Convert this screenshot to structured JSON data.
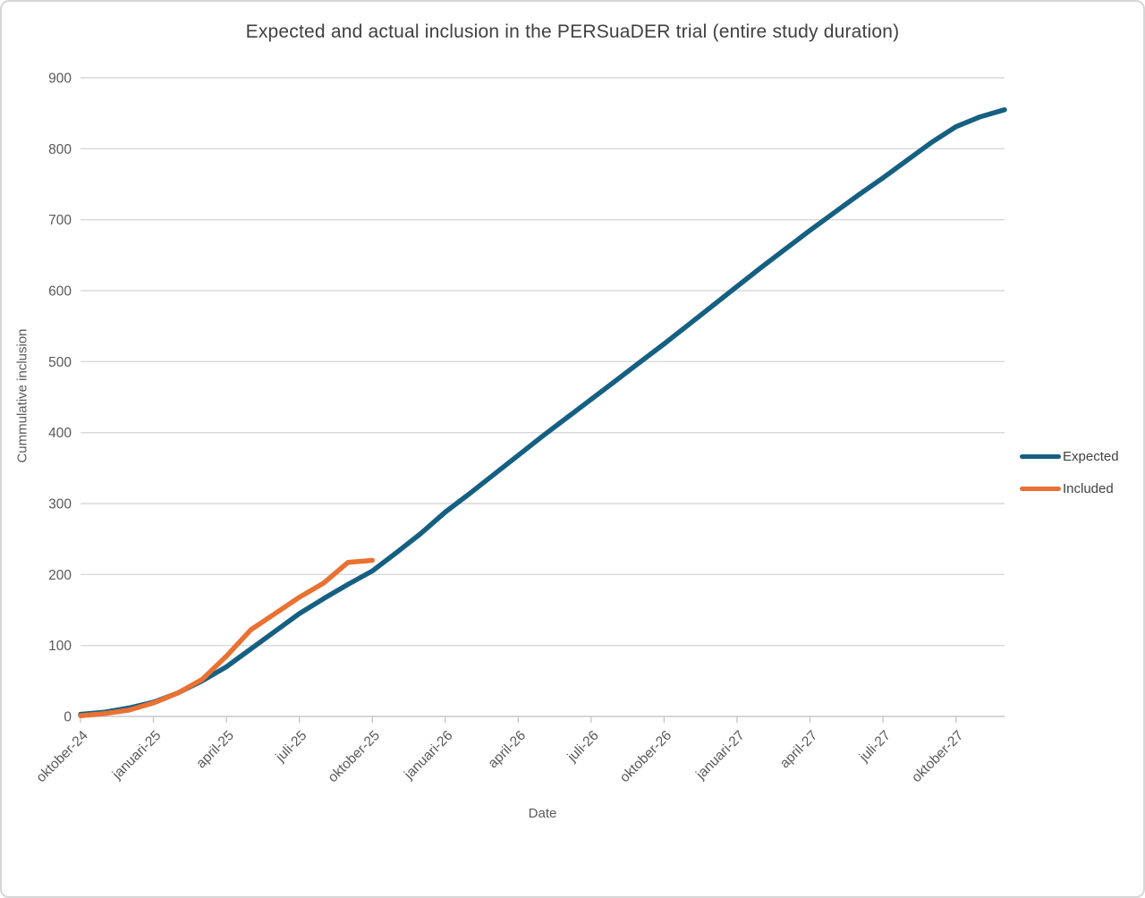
{
  "chart_data": {
    "type": "line",
    "title": "Expected and actual inclusion in the PERSuaDER trial (entire study duration)",
    "xlabel": "Date",
    "ylabel": "Cummulative inclusion",
    "ylim": [
      0,
      900
    ],
    "y_tick_step": 100,
    "grid": true,
    "legend_position": "right",
    "x": [
      "oktober-24",
      "november-24",
      "december-24",
      "januari-25",
      "februari-25",
      "maart-25",
      "april-25",
      "mei-25",
      "juni-25",
      "juli-25",
      "augustus-25",
      "september-25",
      "oktober-25",
      "november-25",
      "december-25",
      "januari-26",
      "februari-26",
      "maart-26",
      "april-26",
      "mei-26",
      "juni-26",
      "juli-26",
      "augustus-26",
      "september-26",
      "oktober-26",
      "november-26",
      "december-26",
      "januari-27",
      "februari-27",
      "maart-27",
      "april-27",
      "mei-27",
      "juni-27",
      "juli-27",
      "augustus-27",
      "september-27",
      "oktober-27",
      "november-27",
      "december-27"
    ],
    "x_tick_labels": [
      "oktober-24",
      "januari-25",
      "april-25",
      "juli-25",
      "oktober-25",
      "januari-26",
      "april-26",
      "juli-26",
      "oktober-26",
      "januari-27",
      "april-27",
      "juli-27",
      "oktober-27"
    ],
    "series": [
      {
        "name": "Expected",
        "color": "#156082",
        "values": [
          3,
          6,
          12,
          20,
          33,
          50,
          70,
          95,
          120,
          145,
          166,
          186,
          205,
          231,
          258,
          288,
          314,
          341,
          368,
          395,
          421,
          447,
          473,
          499,
          525,
          552,
          579,
          606,
          633,
          659,
          685,
          710,
          735,
          759,
          784,
          809,
          831,
          845,
          855
        ]
      },
      {
        "name": "Included",
        "color": "#E97132",
        "values": [
          1,
          4,
          9,
          19,
          33,
          52,
          85,
          122,
          145,
          168,
          188,
          217,
          220
        ]
      }
    ],
    "style": {
      "gridline_color": "#d9d9d9",
      "axis_line_color": "#c9c9c9",
      "tick_label_color": "#595959",
      "title_color": "#404040",
      "line_width": 5.5
    }
  }
}
